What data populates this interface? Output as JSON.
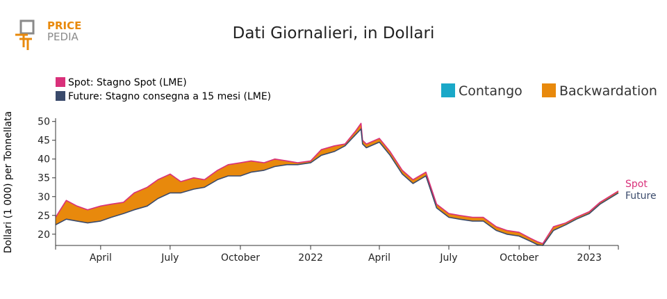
{
  "logo": {
    "line1": "PRICE",
    "line2": "PEDIA",
    "color_primary": "#e8890c",
    "color_secondary": "#8a8a8a"
  },
  "chart_data": {
    "type": "area",
    "title": "Dati Giornalieri, in Dollari",
    "ylabel": "Dollari (1 000) per Tonnellata",
    "xlabel": "",
    "ylim": [
      17,
      50.5
    ],
    "yticks": [
      20,
      25,
      30,
      35,
      40,
      45,
      50
    ],
    "xrange": [
      "2021-02-01",
      "2023-02-08"
    ],
    "xticks": [
      {
        "date": "2021-04-01",
        "label": "April"
      },
      {
        "date": "2021-07-01",
        "label": "July"
      },
      {
        "date": "2021-10-01",
        "label": "October"
      },
      {
        "date": "2022-01-01",
        "label": "2022"
      },
      {
        "date": "2022-04-01",
        "label": "April"
      },
      {
        "date": "2022-07-01",
        "label": "July"
      },
      {
        "date": "2022-10-01",
        "label": "October"
      },
      {
        "date": "2023-01-01",
        "label": "2023"
      }
    ],
    "legend": {
      "series": [
        {
          "name": "Spot: Stagno Spot (LME)",
          "color": "#d9307a"
        },
        {
          "name": "Future: Stagno consegna a 15 mesi (LME)",
          "color": "#3a4a6b"
        }
      ],
      "fill": [
        {
          "name": "Contango",
          "color": "#1aa8c8"
        },
        {
          "name": "Backwardation",
          "color": "#e8890c"
        }
      ]
    },
    "end_labels": {
      "spot": "Spot",
      "future": "Future"
    },
    "x": [
      "2021-02-01",
      "2021-02-15",
      "2021-03-01",
      "2021-03-15",
      "2021-04-01",
      "2021-04-15",
      "2021-05-01",
      "2021-05-15",
      "2021-06-01",
      "2021-06-15",
      "2021-07-01",
      "2021-07-15",
      "2021-08-01",
      "2021-08-15",
      "2021-09-01",
      "2021-09-15",
      "2021-10-01",
      "2021-10-15",
      "2021-11-01",
      "2021-11-15",
      "2021-12-01",
      "2021-12-15",
      "2022-01-01",
      "2022-01-15",
      "2022-02-01",
      "2022-02-15",
      "2022-03-01",
      "2022-03-08",
      "2022-03-10",
      "2022-03-15",
      "2022-04-01",
      "2022-04-15",
      "2022-05-01",
      "2022-05-15",
      "2022-06-01",
      "2022-06-15",
      "2022-07-01",
      "2022-07-15",
      "2022-08-01",
      "2022-08-15",
      "2022-09-01",
      "2022-09-15",
      "2022-10-01",
      "2022-10-15",
      "2022-10-25",
      "2022-11-01",
      "2022-11-15",
      "2022-12-01",
      "2022-12-15",
      "2023-01-01",
      "2023-01-15",
      "2023-02-08"
    ],
    "series": [
      {
        "name": "Spot",
        "values": [
          24.5,
          29.0,
          27.5,
          26.5,
          27.5,
          28.0,
          28.5,
          31.0,
          32.5,
          34.5,
          36.0,
          34.0,
          35.0,
          34.5,
          37.0,
          38.5,
          39.0,
          39.5,
          39.0,
          40.0,
          39.5,
          39.0,
          39.5,
          42.5,
          43.5,
          44.0,
          47.5,
          49.5,
          45.0,
          44.0,
          45.5,
          42.0,
          37.0,
          34.5,
          36.5,
          28.0,
          25.5,
          25.0,
          24.5,
          24.5,
          22.0,
          21.0,
          20.5,
          19.0,
          18.0,
          17.5,
          22.0,
          23.0,
          24.5,
          26.0,
          28.5,
          31.5
        ]
      },
      {
        "name": "Future",
        "values": [
          22.5,
          24.0,
          23.5,
          23.0,
          23.5,
          24.5,
          25.5,
          26.5,
          27.5,
          29.5,
          31.0,
          31.0,
          32.0,
          32.5,
          34.5,
          35.5,
          35.5,
          36.5,
          37.0,
          38.0,
          38.5,
          38.5,
          39.0,
          41.0,
          42.0,
          43.5,
          46.5,
          48.0,
          44.0,
          43.0,
          44.5,
          41.0,
          36.0,
          33.5,
          35.5,
          27.0,
          24.5,
          24.0,
          23.5,
          23.5,
          21.0,
          20.0,
          19.5,
          18.2,
          17.2,
          17.0,
          21.0,
          22.5,
          24.0,
          25.5,
          28.0,
          31.0
        ]
      }
    ]
  }
}
